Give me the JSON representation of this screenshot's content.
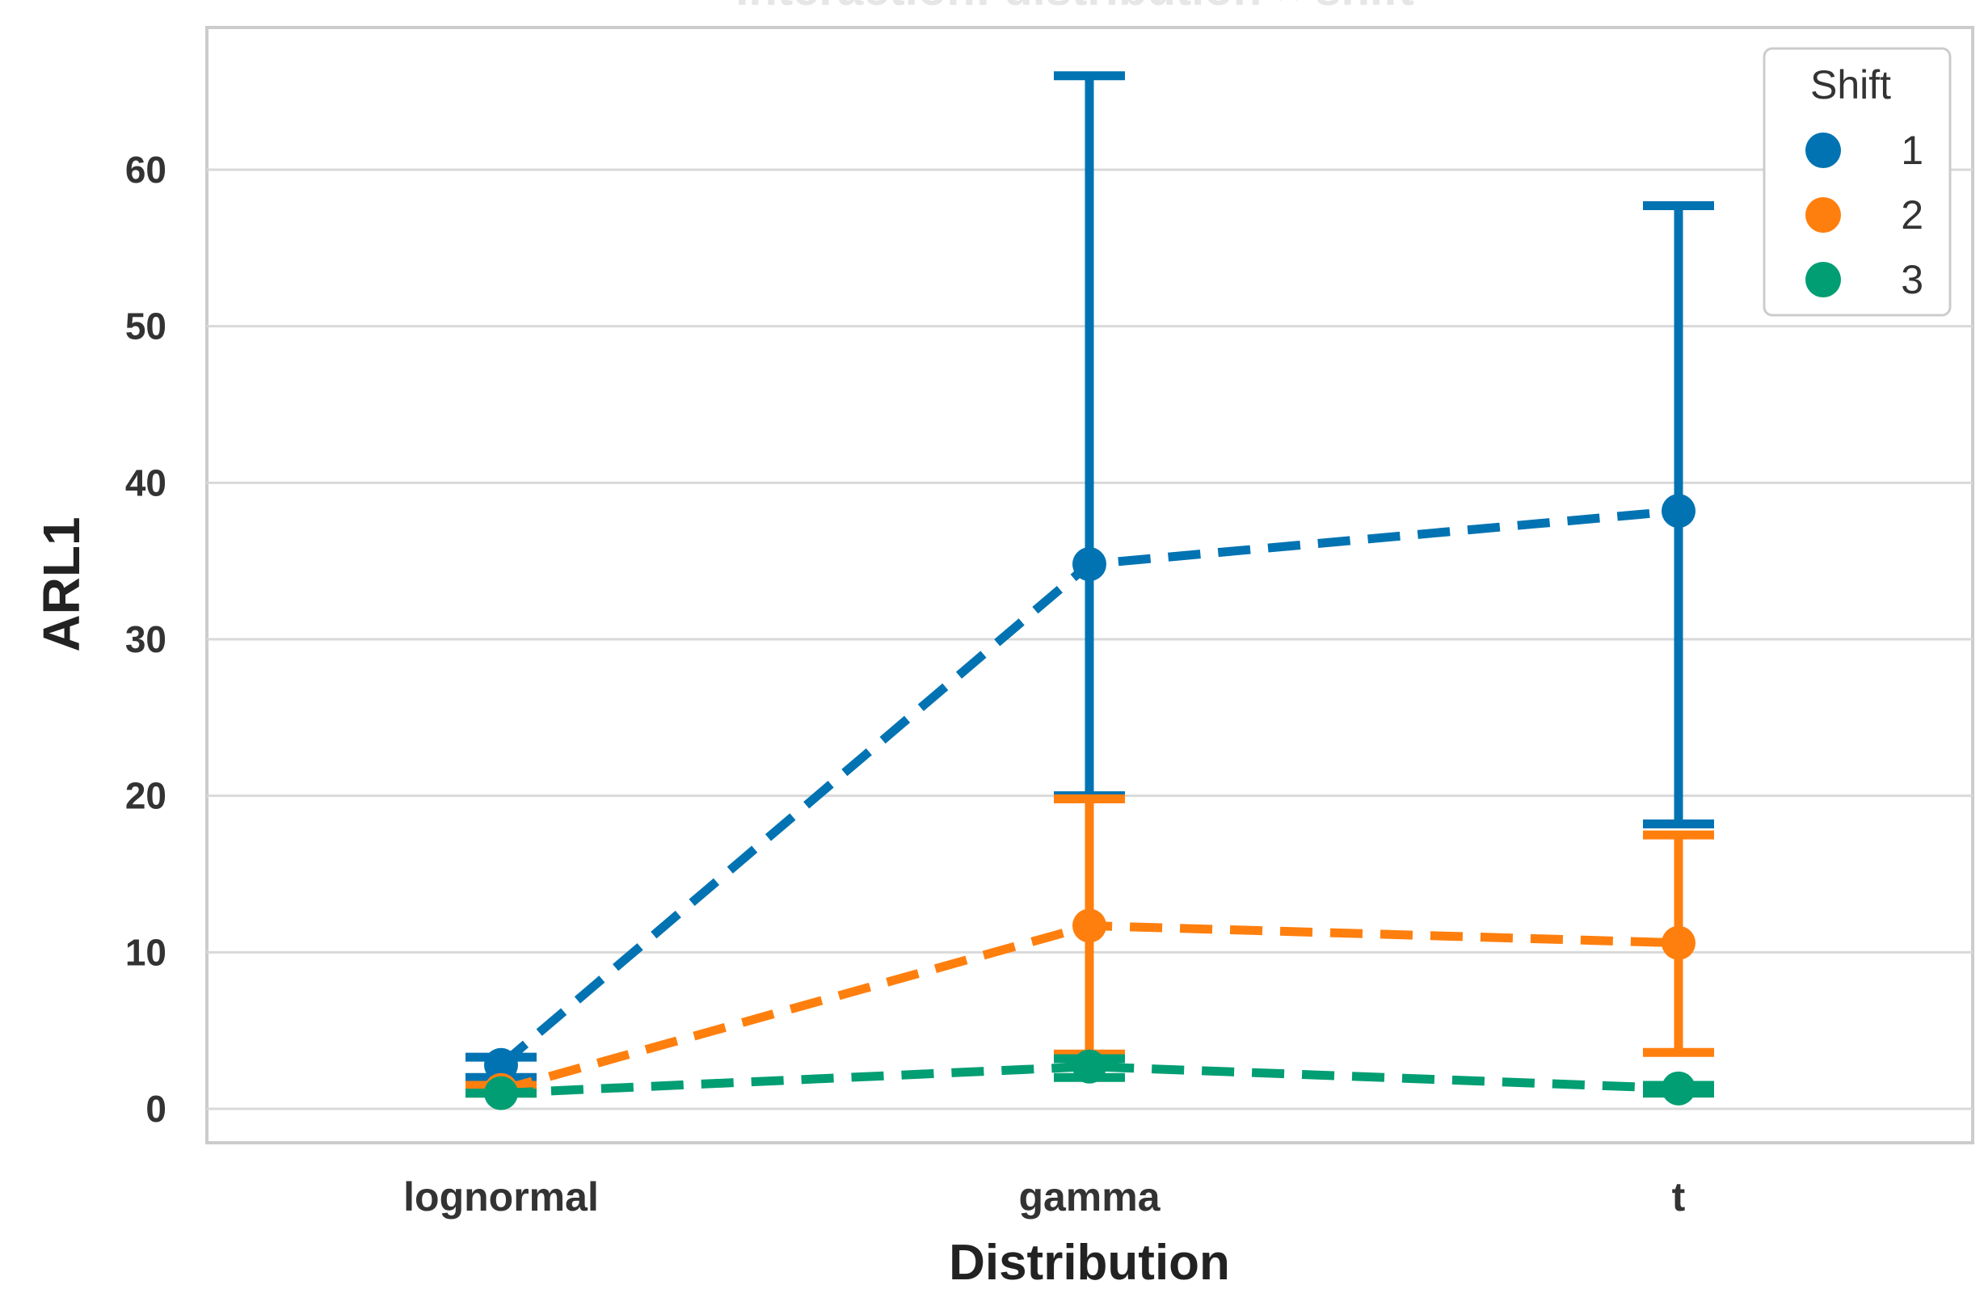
{
  "chart_data": {
    "type": "line",
    "title": "Interaction: distribution × shift",
    "xlabel": "Distribution",
    "ylabel": "ARL1",
    "categories": [
      "lognormal",
      "gamma",
      "t"
    ],
    "ylim": [
      -2,
      68
    ],
    "yticks": [
      0,
      10,
      20,
      30,
      40,
      50,
      60
    ],
    "grid": true,
    "legend": {
      "title": "Shift",
      "placement": "top-right"
    },
    "series": [
      {
        "name": "1",
        "color": "#0173b2",
        "values": [
          2.8,
          34.8,
          38.2
        ],
        "err_low": [
          2.0,
          20.0,
          18.2
        ],
        "err_high": [
          3.3,
          66.0,
          57.7
        ]
      },
      {
        "name": "2",
        "color": "#ff7f0e",
        "values": [
          1.2,
          11.7,
          10.6
        ],
        "err_low": [
          1.0,
          3.5,
          3.6
        ],
        "err_high": [
          1.5,
          19.8,
          17.5
        ]
      },
      {
        "name": "3",
        "color": "#029e73",
        "values": [
          1.0,
          2.7,
          1.3
        ],
        "err_low": [
          1.0,
          2.0,
          1.0
        ],
        "err_high": [
          1.0,
          3.2,
          1.5
        ]
      }
    ]
  }
}
